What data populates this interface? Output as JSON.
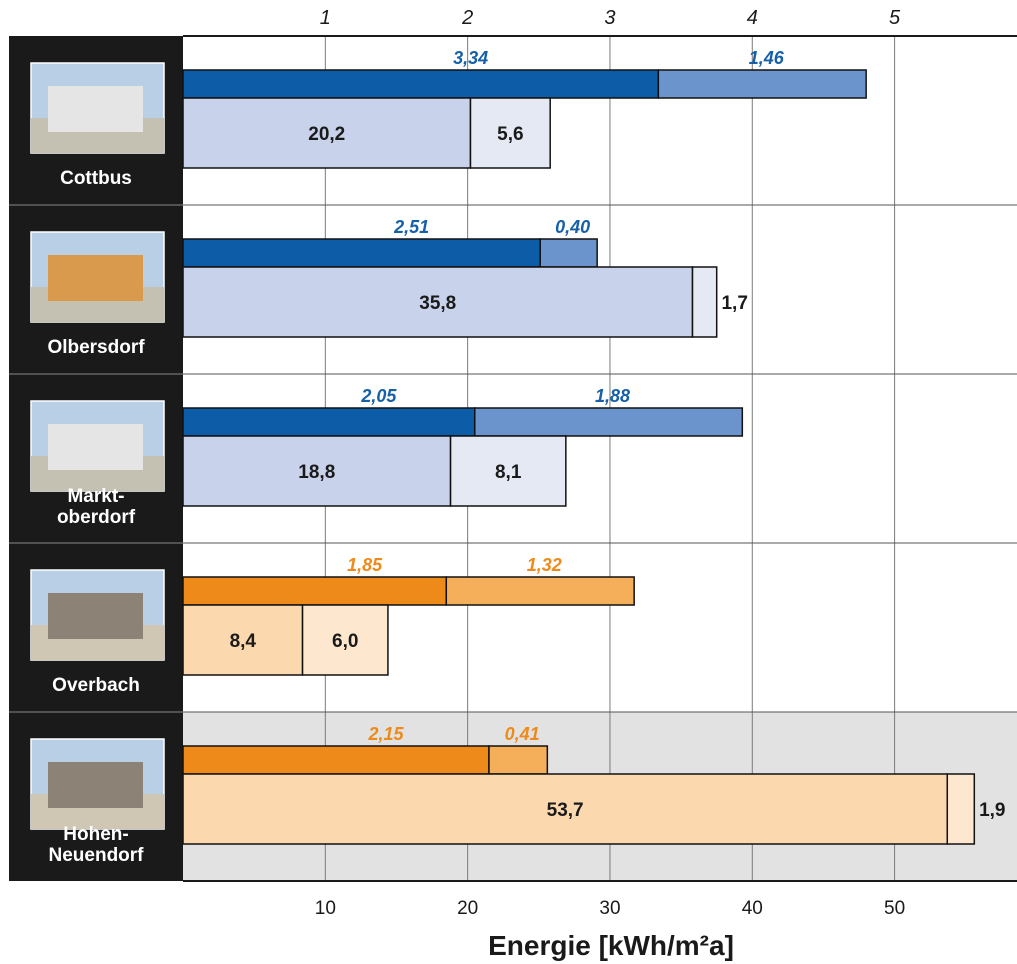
{
  "chart_data": {
    "type": "bar",
    "orientation": "horizontal",
    "xlabel": "Energie [kWh/m²a]",
    "top_axis_ticks": [
      "1",
      "2",
      "3",
      "4",
      "5"
    ],
    "bottom_axis_ticks": [
      "10",
      "20",
      "30",
      "40",
      "50"
    ],
    "top_axis_range": [
      0,
      5.86
    ],
    "bottom_axis_range": [
      0,
      58.6
    ],
    "grid": true,
    "colors": {
      "blue_dark": "#0d5ca8",
      "blue_light": "#6b93cc",
      "blue_pale": "#c8d2ea",
      "blue_paler": "#e4e9f4",
      "orange_dark": "#ee8a1a",
      "orange_light": "#f5ae5a",
      "orange_pale": "#fbd8ae",
      "orange_paler": "#fde8cf",
      "label_blue": "#1560a8",
      "label_orange": "#ee8a1a",
      "sidebar": "#1a1a1a",
      "highlight_band": "#e2e2e2"
    },
    "groups": [
      {
        "site": "Cottbus",
        "palette": "blue",
        "top": {
          "values": [
            3.34,
            1.46
          ],
          "labels": [
            "3,34",
            "1,46"
          ]
        },
        "bottom": {
          "values": [
            20.2,
            5.6
          ],
          "labels": [
            "20,2",
            "5,6"
          ]
        }
      },
      {
        "site": "Olbersdorf",
        "palette": "blue",
        "top": {
          "values": [
            2.51,
            0.4
          ],
          "labels": [
            "2,51",
            "0,40"
          ]
        },
        "bottom": {
          "values": [
            35.8,
            1.7
          ],
          "labels": [
            "35,8",
            "1,7"
          ]
        }
      },
      {
        "site": "Markt-\noberdorf",
        "palette": "blue",
        "top": {
          "values": [
            2.05,
            1.88
          ],
          "labels": [
            "2,05",
            "1,88"
          ]
        },
        "bottom": {
          "values": [
            18.8,
            8.1
          ],
          "labels": [
            "18,8",
            "8,1"
          ]
        }
      },
      {
        "site": "Overbach",
        "palette": "orange",
        "top": {
          "values": [
            1.85,
            1.32
          ],
          "labels": [
            "1,85",
            "1,32"
          ]
        },
        "bottom": {
          "values": [
            8.4,
            6.0
          ],
          "labels": [
            "8,4",
            "6,0"
          ]
        }
      },
      {
        "site": "Hohen-\nNeuendorf",
        "palette": "orange",
        "highlighted": true,
        "top": {
          "values": [
            2.15,
            0.41
          ],
          "labels": [
            "2,15",
            "0,41"
          ]
        },
        "bottom": {
          "values": [
            53.7,
            1.9
          ],
          "labels": [
            "53,7",
            "1,9"
          ]
        }
      }
    ]
  }
}
